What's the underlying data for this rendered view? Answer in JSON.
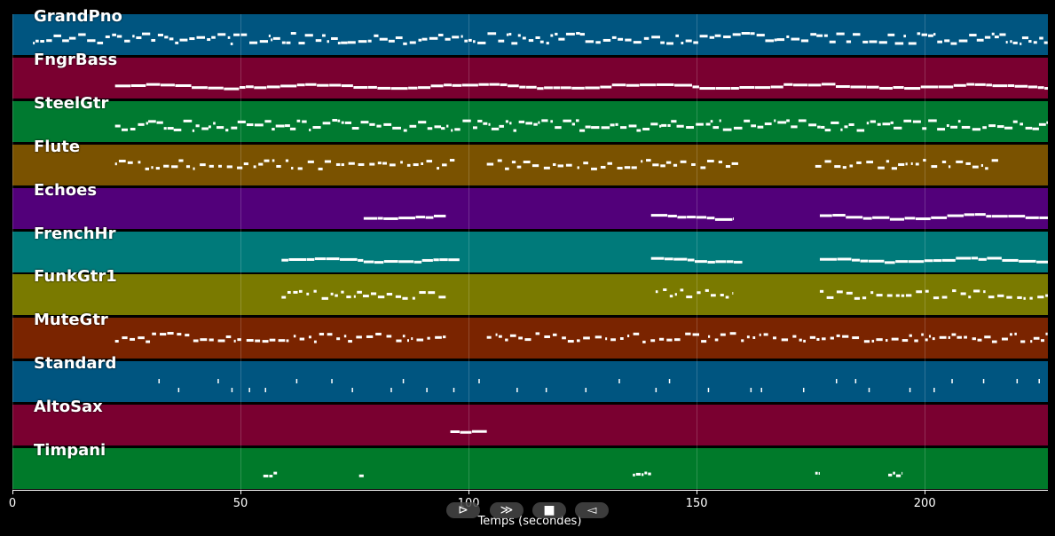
{
  "tracks": [
    {
      "name": "GrandPno",
      "color": "#005580",
      "density": "high",
      "segments": [
        [
          4.5,
          228
        ]
      ]
    },
    {
      "name": "FngrBass",
      "color": "#7a0030",
      "density": "line",
      "segments": [
        [
          22.5,
          228
        ]
      ]
    },
    {
      "name": "SteelGtr",
      "color": "#007a30",
      "density": "high",
      "segments": [
        [
          22.5,
          228
        ]
      ]
    },
    {
      "name": "Flute",
      "color": "#7a5200",
      "density": "mid",
      "segments": [
        [
          22.5,
          97
        ],
        [
          104,
          160
        ],
        [
          176,
          217
        ]
      ]
    },
    {
      "name": "Echoes",
      "color": "#52007a",
      "density": "line",
      "segments": [
        [
          77,
          95
        ],
        [
          140,
          158
        ],
        [
          177,
          228
        ]
      ]
    },
    {
      "name": "FrenchHr",
      "color": "#007a7a",
      "density": "line",
      "segments": [
        [
          59,
          98
        ],
        [
          140,
          160
        ],
        [
          177,
          228
        ]
      ]
    },
    {
      "name": "FunkGtr1",
      "color": "#7a7a00",
      "density": "mid",
      "segments": [
        [
          59,
          95
        ],
        [
          141,
          158
        ],
        [
          177,
          228
        ]
      ]
    },
    {
      "name": "MuteGtr",
      "color": "#7a2400",
      "density": "mid",
      "segments": [
        [
          22.5,
          95
        ],
        [
          104,
          228
        ]
      ]
    },
    {
      "name": "Standard",
      "color": "#005580",
      "density": "perc",
      "segments": [
        [
          32,
          228
        ]
      ]
    },
    {
      "name": "AltoSax",
      "color": "#7a0030",
      "density": "line",
      "segments": [
        [
          96,
          104
        ]
      ]
    },
    {
      "name": "Timpani",
      "color": "#007a2a",
      "density": "perc2",
      "segments": [
        [
          55,
          58
        ],
        [
          76,
          77
        ],
        [
          136,
          140
        ],
        [
          176,
          177
        ],
        [
          192,
          195
        ]
      ]
    }
  ],
  "axis": {
    "xlabel": "Temps (secondes)",
    "xlim": [
      0,
      227
    ],
    "ticks": [
      0,
      50,
      100,
      150,
      200
    ],
    "tick_labels": [
      "0",
      "50",
      "100",
      "150",
      "200"
    ]
  },
  "controls": {
    "play": "⊳",
    "forward": "≫",
    "stop": "■",
    "back": "◅"
  }
}
